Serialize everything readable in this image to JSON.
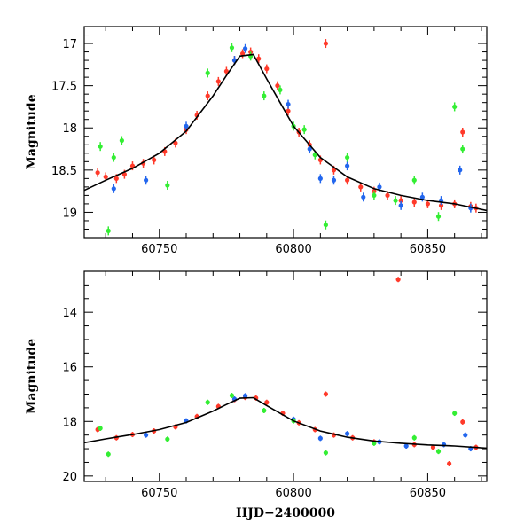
{
  "chart_data": [
    {
      "type": "scatter",
      "panel": "top",
      "title": "",
      "xlabel": "",
      "ylabel": "Magnitude",
      "xlim": [
        60722,
        60872
      ],
      "ylim": [
        19.3,
        16.8
      ],
      "y_inverted": true,
      "x_ticks": [
        60750,
        60800,
        60850
      ],
      "x_tick_labels": [
        "60750",
        "60800",
        "60850"
      ],
      "y_ticks": [
        17,
        17.5,
        18,
        18.5,
        19
      ],
      "y_tick_labels": [
        "17",
        "17.5",
        "18",
        "18.5",
        "19"
      ],
      "grid": false,
      "legend": "none",
      "series": [
        {
          "color": "#ff3a2a",
          "points": [
            [
              60727,
              18.53
            ],
            [
              60730,
              18.58
            ],
            [
              60734,
              18.6
            ],
            [
              60737,
              18.55
            ],
            [
              60740,
              18.45
            ],
            [
              60744,
              18.42
            ],
            [
              60748,
              18.38
            ],
            [
              60752,
              18.28
            ],
            [
              60756,
              18.18
            ],
            [
              60760,
              18.02
            ],
            [
              60764,
              17.85
            ],
            [
              60768,
              17.62
            ],
            [
              60772,
              17.45
            ],
            [
              60775,
              17.33
            ],
            [
              60778,
              17.2
            ],
            [
              60781,
              17.12
            ],
            [
              60784,
              17.1
            ],
            [
              60787,
              17.18
            ],
            [
              60790,
              17.3
            ],
            [
              60794,
              17.5
            ],
            [
              60798,
              17.8
            ],
            [
              60802,
              18.05
            ],
            [
              60806,
              18.2
            ],
            [
              60810,
              18.38
            ],
            [
              60812,
              17.0
            ],
            [
              60815,
              18.5
            ],
            [
              60820,
              18.62
            ],
            [
              60825,
              18.7
            ],
            [
              60830,
              18.75
            ],
            [
              60835,
              18.8
            ],
            [
              60840,
              18.86
            ],
            [
              60845,
              18.88
            ],
            [
              60850,
              18.9
            ],
            [
              60855,
              18.92
            ],
            [
              60860,
              18.9
            ],
            [
              60863,
              18.05
            ],
            [
              60866,
              18.93
            ],
            [
              60868,
              18.95
            ]
          ]
        },
        {
          "color": "#2266ee",
          "points": [
            [
              60733,
              18.72
            ],
            [
              60745,
              18.62
            ],
            [
              60760,
              17.98
            ],
            [
              60778,
              17.2
            ],
            [
              60782,
              17.06
            ],
            [
              60798,
              17.72
            ],
            [
              60806,
              18.25
            ],
            [
              60810,
              18.6
            ],
            [
              60815,
              18.62
            ],
            [
              60820,
              18.45
            ],
            [
              60826,
              18.82
            ],
            [
              60832,
              18.7
            ],
            [
              60840,
              18.92
            ],
            [
              60848,
              18.82
            ],
            [
              60855,
              18.86
            ],
            [
              60862,
              18.5
            ],
            [
              60866,
              18.95
            ]
          ]
        },
        {
          "color": "#33ee33",
          "points": [
            [
              60728,
              18.22
            ],
            [
              60731,
              19.22
            ],
            [
              60733,
              18.35
            ],
            [
              60736,
              18.15
            ],
            [
              60753,
              18.68
            ],
            [
              60768,
              17.35
            ],
            [
              60777,
              17.05
            ],
            [
              60784,
              17.15
            ],
            [
              60789,
              17.62
            ],
            [
              60795,
              17.55
            ],
            [
              60800,
              17.98
            ],
            [
              60804,
              18.02
            ],
            [
              60808,
              18.32
            ],
            [
              60812,
              19.15
            ],
            [
              60820,
              18.35
            ],
            [
              60830,
              18.8
            ],
            [
              60838,
              18.86
            ],
            [
              60845,
              18.62
            ],
            [
              60854,
              19.05
            ],
            [
              60860,
              17.75
            ],
            [
              60863,
              18.25
            ]
          ]
        }
      ],
      "model_curve": {
        "color": "#000000",
        "x": [
          60722,
          60730,
          60740,
          60750,
          60760,
          60770,
          60775,
          60780,
          60785,
          60790,
          60795,
          60800,
          60810,
          60820,
          60830,
          60840,
          60850,
          60860,
          60872
        ],
        "y": [
          18.74,
          18.62,
          18.48,
          18.3,
          18.04,
          17.62,
          17.38,
          17.15,
          17.13,
          17.42,
          17.7,
          17.98,
          18.35,
          18.58,
          18.72,
          18.8,
          18.86,
          18.9,
          18.98
        ]
      }
    },
    {
      "type": "scatter",
      "panel": "bottom",
      "title": "",
      "xlabel": "HJD−2400000",
      "ylabel": "Magnitude",
      "xlim": [
        60722,
        60872
      ],
      "ylim": [
        20.2,
        12.5
      ],
      "y_inverted": true,
      "x_ticks": [
        60750,
        60800,
        60850
      ],
      "x_tick_labels": [
        "60750",
        "60800",
        "60850"
      ],
      "y_ticks": [
        14,
        16,
        18,
        20
      ],
      "y_tick_labels": [
        "14",
        "16",
        "18",
        "20"
      ],
      "grid": false,
      "legend": "none",
      "series": [
        {
          "color": "#ff3a2a",
          "points": [
            [
              60727,
              18.3
            ],
            [
              60734,
              18.6
            ],
            [
              60740,
              18.48
            ],
            [
              60748,
              18.35
            ],
            [
              60756,
              18.2
            ],
            [
              60764,
              17.82
            ],
            [
              60772,
              17.45
            ],
            [
              60778,
              17.2
            ],
            [
              60782,
              17.12
            ],
            [
              60786,
              17.14
            ],
            [
              60790,
              17.3
            ],
            [
              60796,
              17.7
            ],
            [
              60802,
              18.05
            ],
            [
              60808,
              18.3
            ],
            [
              60812,
              17.0
            ],
            [
              60815,
              18.5
            ],
            [
              60822,
              18.6
            ],
            [
              60830,
              18.75
            ],
            [
              60839,
              12.8
            ],
            [
              60845,
              18.85
            ],
            [
              60852,
              18.95
            ],
            [
              60858,
              19.55
            ],
            [
              60863,
              18.02
            ],
            [
              60868,
              18.95
            ]
          ]
        },
        {
          "color": "#2266ee",
          "points": [
            [
              60745,
              18.5
            ],
            [
              60760,
              17.98
            ],
            [
              60778,
              17.18
            ],
            [
              60782,
              17.06
            ],
            [
              60800,
              17.92
            ],
            [
              60810,
              18.62
            ],
            [
              60820,
              18.45
            ],
            [
              60832,
              18.75
            ],
            [
              60842,
              18.9
            ],
            [
              60856,
              18.85
            ],
            [
              60864,
              18.5
            ],
            [
              60866,
              19.0
            ]
          ]
        },
        {
          "color": "#33ee33",
          "points": [
            [
              60728,
              18.25
            ],
            [
              60731,
              19.2
            ],
            [
              60753,
              18.65
            ],
            [
              60768,
              17.3
            ],
            [
              60777,
              17.05
            ],
            [
              60789,
              17.6
            ],
            [
              60800,
              17.98
            ],
            [
              60812,
              19.15
            ],
            [
              60830,
              18.8
            ],
            [
              60845,
              18.6
            ],
            [
              60854,
              19.1
            ],
            [
              60860,
              17.7
            ]
          ]
        }
      ],
      "model_curve": {
        "color": "#000000",
        "x": [
          60722,
          60730,
          60740,
          60750,
          60760,
          60770,
          60775,
          60780,
          60785,
          60790,
          60795,
          60800,
          60810,
          60820,
          60830,
          60840,
          60850,
          60860,
          60872
        ],
        "y": [
          18.78,
          18.64,
          18.48,
          18.3,
          18.04,
          17.62,
          17.38,
          17.15,
          17.13,
          17.42,
          17.7,
          17.98,
          18.35,
          18.58,
          18.72,
          18.8,
          18.86,
          18.9,
          18.98
        ]
      }
    }
  ]
}
